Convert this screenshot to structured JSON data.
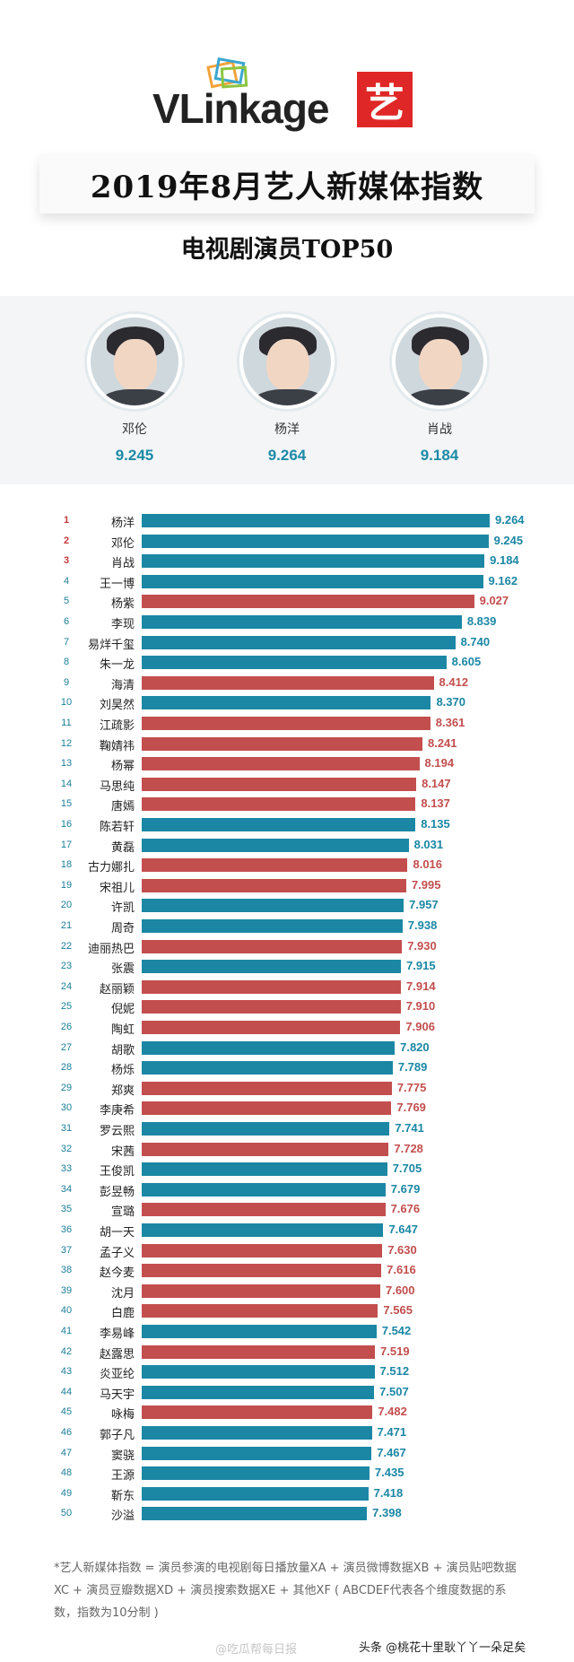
{
  "header": {
    "logo_text": "VLinkage",
    "logo_badge": "艺",
    "title": "2019年8月艺人新媒体指数",
    "subtitle": "电视剧演员TOP50"
  },
  "podium": [
    {
      "name": "邓伦",
      "score": "9.245"
    },
    {
      "name": "杨洋",
      "score": "9.264"
    },
    {
      "name": "肖战",
      "score": "9.184"
    }
  ],
  "colors": {
    "teal": "#1b87a4",
    "red": "#c34e4e"
  },
  "chart_data": {
    "type": "bar",
    "orientation": "horizontal",
    "categories": [
      "杨洋",
      "邓伦",
      "肖战",
      "王一博",
      "杨紫",
      "李现",
      "易烊千玺",
      "朱一龙",
      "海清",
      "刘昊然",
      "江疏影",
      "鞠婧祎",
      "杨幂",
      "马思纯",
      "唐嫣",
      "陈若轩",
      "黄磊",
      "古力娜扎",
      "宋祖儿",
      "许凯",
      "周奇",
      "迪丽热巴",
      "张震",
      "赵丽颖",
      "倪妮",
      "陶虹",
      "胡歌",
      "杨烁",
      "郑爽",
      "李庚希",
      "罗云熙",
      "宋茜",
      "王俊凯",
      "彭昱畅",
      "宣璐",
      "胡一天",
      "孟子义",
      "赵今麦",
      "沈月",
      "白鹿",
      "李易峰",
      "赵露思",
      "炎亚纶",
      "马天宇",
      "咏梅",
      "郭子凡",
      "窦骁",
      "王源",
      "靳东",
      "沙溢"
    ],
    "values": [
      9.264,
      9.245,
      9.184,
      9.162,
      9.027,
      8.839,
      8.74,
      8.605,
      8.412,
      8.37,
      8.361,
      8.241,
      8.194,
      8.147,
      8.137,
      8.135,
      8.031,
      8.016,
      7.995,
      7.957,
      7.938,
      7.93,
      7.915,
      7.914,
      7.91,
      7.906,
      7.82,
      7.789,
      7.775,
      7.769,
      7.741,
      7.728,
      7.705,
      7.679,
      7.676,
      7.647,
      7.63,
      7.616,
      7.6,
      7.565,
      7.542,
      7.519,
      7.512,
      7.507,
      7.482,
      7.471,
      7.467,
      7.435,
      7.418,
      7.398
    ],
    "labels": [
      "9.264",
      "9.245",
      "9.184",
      "9.162",
      "9.027",
      "8.839",
      "8.740",
      "8.605",
      "8.412",
      "8.370",
      "8.361",
      "8.241",
      "8.194",
      "8.147",
      "8.137",
      "8.135",
      "8.031",
      "8.016",
      "7.995",
      "7.957",
      "7.938",
      "7.930",
      "7.915",
      "7.914",
      "7.910",
      "7.906",
      "7.820",
      "7.789",
      "7.775",
      "7.769",
      "7.741",
      "7.728",
      "7.705",
      "7.679",
      "7.676",
      "7.647",
      "7.630",
      "7.616",
      "7.600",
      "7.565",
      "7.542",
      "7.519",
      "7.512",
      "7.507",
      "7.482",
      "7.471",
      "7.467",
      "7.435",
      "7.418",
      "7.398"
    ],
    "bar_colors": [
      "teal",
      "teal",
      "teal",
      "teal",
      "red",
      "teal",
      "teal",
      "teal",
      "red",
      "teal",
      "red",
      "red",
      "red",
      "red",
      "red",
      "teal",
      "teal",
      "red",
      "red",
      "teal",
      "teal",
      "red",
      "teal",
      "red",
      "red",
      "red",
      "teal",
      "teal",
      "red",
      "red",
      "teal",
      "red",
      "teal",
      "teal",
      "red",
      "teal",
      "red",
      "red",
      "red",
      "red",
      "teal",
      "red",
      "teal",
      "teal",
      "red",
      "teal",
      "teal",
      "teal",
      "teal",
      "teal"
    ],
    "title": "电视剧演员TOP50"
  },
  "footer": {
    "note": "*艺人新媒体指数 = 演员参演的电视剧每日播放量XA + 演员微博数据XB + 演员贴吧数据XC + 演员豆瓣数据XD + 演员搜索数据XE + 其他XF ( ABCDEF代表各个维度数据的系数，指数为10分制 )",
    "watermark_left": "@吃瓜帮每日报",
    "watermark_right": "头条 @桃花十里耿丫丫一朵足矣"
  }
}
